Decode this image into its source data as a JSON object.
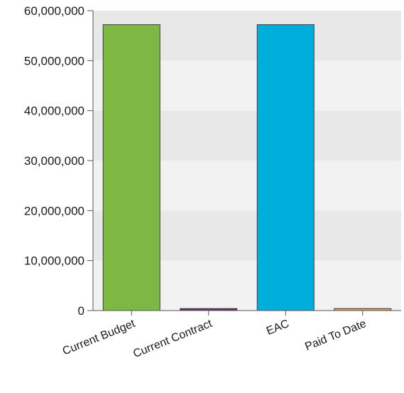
{
  "chart_data": {
    "type": "bar",
    "title": "",
    "xlabel": "",
    "ylabel": "",
    "categories": [
      "Current Budget",
      "Current Contract",
      "EAC",
      "Paid To Date"
    ],
    "values": [
      57200000,
      400000,
      57200000,
      400000
    ],
    "colors": [
      "#7cb843",
      "#7a2a67",
      "#00aedb",
      "#f59b3b"
    ],
    "ylim": [
      0,
      60000000
    ],
    "yticks": [
      0,
      10000000,
      20000000,
      30000000,
      40000000,
      50000000,
      60000000
    ],
    "ytick_labels": [
      "0",
      "10,000,000",
      "20,000,000",
      "30,000,000",
      "40,000,000",
      "50,000,000",
      "60,000,000"
    ],
    "grid": true,
    "band_colors": [
      "#f2f2f2",
      "#e8e8e8"
    ],
    "legend": "none"
  }
}
